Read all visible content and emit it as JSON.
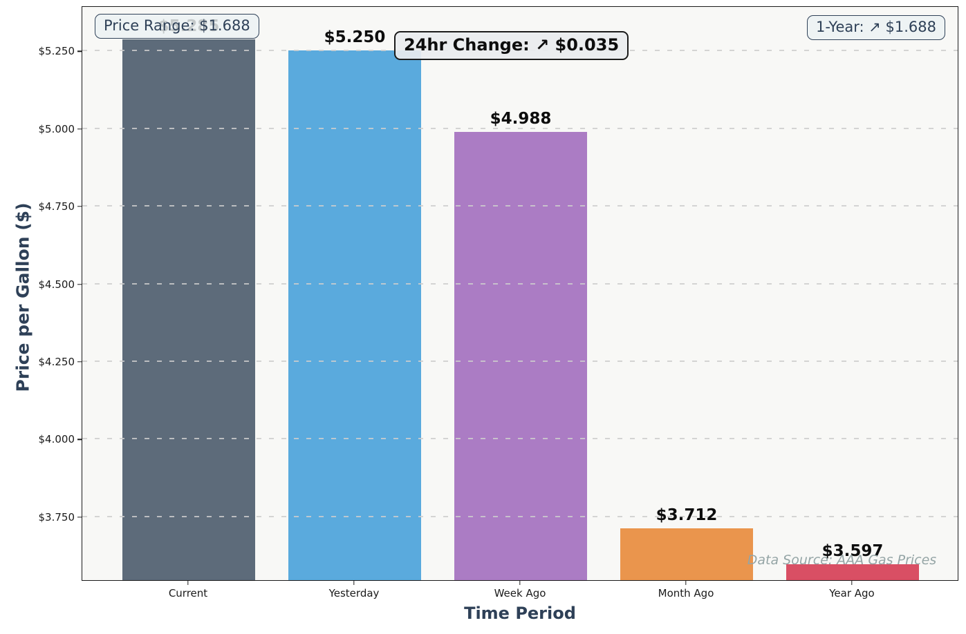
{
  "figure": {
    "background": "#ffffff",
    "plot_background": "#f8f8f6",
    "spine_color": "#1a1a1a",
    "grid_color": "#cdcdcd",
    "axis_title_color": "#2e4057",
    "tick_label_color": "#1a1a1a"
  },
  "chart_data": {
    "type": "bar",
    "title": "",
    "xlabel": "Time Period",
    "ylabel": "Price per Gallon ($)",
    "categories": [
      "Current",
      "Yesterday",
      "Week Ago",
      "Month Ago",
      "Year Ago"
    ],
    "values": [
      5.285,
      5.25,
      4.988,
      3.712,
      3.597
    ],
    "value_labels": [
      "$5.285",
      "$5.250",
      "$4.988",
      "$3.712",
      "$3.597"
    ],
    "bar_colors": [
      "#5d6b7a",
      "#5aaadd",
      "#ab7cc4",
      "#ea954d",
      "#d94f64"
    ],
    "ylim": [
      3.545,
      5.395
    ],
    "yticks": [
      3.75,
      4.0,
      4.25,
      4.5,
      4.75,
      5.0,
      5.25
    ],
    "ytick_labels": [
      "$3.750",
      "$4.000",
      "$4.250",
      "$4.500",
      "$4.750",
      "$5.000",
      "$5.250"
    ],
    "grid": "horizontal dashed, drawn over bars",
    "legend": "none",
    "annotations": [
      "Price Range: $1.688",
      "24hr Change: ↗ $0.035",
      "1-Year: ↗ $1.688",
      "Data Source: AAA Gas Prices"
    ]
  },
  "annotations": {
    "price_range": {
      "text": "Price Range: $1.688"
    },
    "day_change": {
      "text": "24hr Change: ↗ $0.035"
    },
    "one_year": {
      "text": "1-Year: ↗ $1.688"
    },
    "data_source": {
      "text": "Data Source: AAA Gas Prices"
    }
  }
}
